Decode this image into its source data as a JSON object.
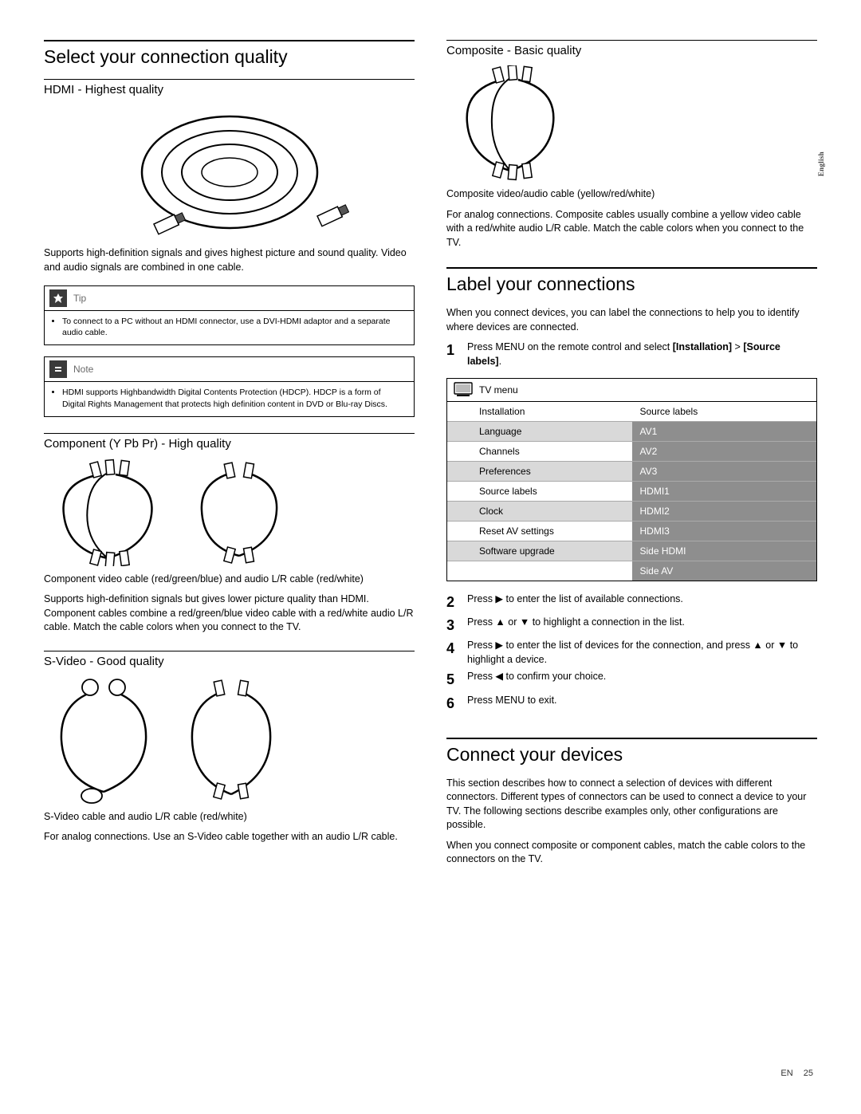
{
  "side_tab": "English",
  "footer": {
    "lang": "EN",
    "page": "25"
  },
  "left": {
    "h1": "Select your connection quality",
    "hdmi": {
      "title": "HDMI - Highest quality",
      "desc": "Supports high-definition signals and gives highest picture and sound quality. Video and audio signals are combined in one cable."
    },
    "tip": {
      "label": "Tip",
      "text": "To connect to a PC without an HDMI connector, use a DVI-HDMI adaptor and a separate audio cable."
    },
    "note": {
      "label": "Note",
      "text": "HDMI supports Highbandwidth Digital Contents Protection (HDCP). HDCP is a form of Digital Rights Management that protects high definition content in DVD or Blu-ray Discs."
    },
    "component": {
      "title": "Component (Y Pb Pr) - High quality",
      "caption": "Component video cable (red/green/blue) and audio L/R cable (red/white)",
      "desc": "Supports high-definition signals but gives lower picture quality than HDMI. Component cables combine a red/green/blue video cable with a red/white audio L/R cable. Match the cable colors when you connect to the TV."
    },
    "svideo": {
      "title": "S-Video - Good quality",
      "caption": "S-Video cable and audio L/R cable (red/white)",
      "desc": "For analog connections. Use an S-Video cable together with an audio L/R cable."
    }
  },
  "right": {
    "composite": {
      "title": "Composite - Basic quality",
      "caption": "Composite video/audio cable (yellow/red/white)",
      "desc": "For analog connections. Composite cables usually combine a yellow video cable with a red/white audio L/R cable. Match the cable colors when you connect to the TV."
    },
    "label_section": {
      "h1": "Label your connections",
      "intro": "When you connect devices, you can label the connections to help you to identify where devices are connected.",
      "step1a": "Press MENU on the remote control and select ",
      "step1b": "[Installation]",
      "step1c": " > ",
      "step1d": "[Source labels]",
      "step1e": ".",
      "menu": {
        "head": "TV menu",
        "header_l": "Installation",
        "header_r": "Source labels",
        "rows": [
          {
            "l": "Language",
            "r": "AV1",
            "lbg": "lgrey",
            "rbg": "dgrey"
          },
          {
            "l": "Channels",
            "r": "AV2",
            "lbg": "white",
            "rbg": "dgrey2"
          },
          {
            "l": "Preferences",
            "r": "AV3",
            "lbg": "lgrey",
            "rbg": "dgrey"
          },
          {
            "l": "Source labels",
            "r": "HDMI1",
            "lbg": "white",
            "rbg": "dgrey2"
          },
          {
            "l": "Clock",
            "r": "HDMI2",
            "lbg": "lgrey",
            "rbg": "dgrey"
          },
          {
            "l": "Reset AV settings",
            "r": "HDMI3",
            "lbg": "white",
            "rbg": "dgrey2"
          },
          {
            "l": "Software upgrade",
            "r": "Side HDMI",
            "lbg": "lgrey",
            "rbg": "dgrey"
          },
          {
            "l": "",
            "r": "Side AV",
            "lbg": "white",
            "rbg": "dgrey2"
          }
        ]
      },
      "steps_rest": [
        "Press ▶ to enter the list of available connections.",
        "Press ▲ or ▼ to highlight a connection in the list.",
        "Press ▶ to enter the list of devices for the connection, and press ▲ or ▼ to highlight a device.",
        "Press ◀ to confirm your choice.",
        "Press MENU to exit."
      ]
    },
    "connect": {
      "h1": "Connect your devices",
      "p1": "This section describes how to connect a selection of devices with different connectors. Different types of connectors can be used to connect a device to your TV. The following sections describe examples only, other configurations are possible.",
      "p2": "When you connect composite or component cables, match the cable colors to the connectors on the TV."
    }
  }
}
